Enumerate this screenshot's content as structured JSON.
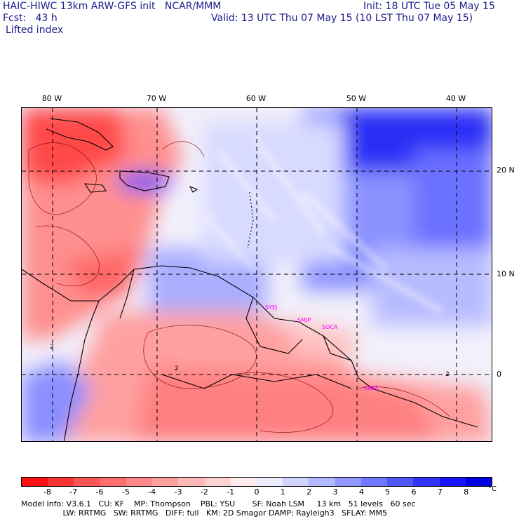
{
  "header": {
    "line1_left": "HAIC-HIWC 13km ARW-GFS init   NCAR/MMM",
    "line1_right": "Init: 18 UTC Tue 05 May 15",
    "line2_left": "Fcst:   43 h",
    "line2_right": "Valid: 13 UTC Thu 07 May 15 (10 LST Thu 07 May 15)",
    "field": "Lifted index"
  },
  "map": {
    "lon_labels": [
      "80 W",
      "70 W",
      "60 W",
      "50 W",
      "40 W"
    ],
    "lat_labels": [
      "20 N",
      "10 N",
      "0"
    ],
    "site_labels": [
      "SYEJ",
      "SMJP",
      "SOCA",
      "SBBE"
    ],
    "contour_label": "2"
  },
  "colorbar": {
    "ticks": [
      "-8",
      "-7",
      "-6",
      "-5",
      "-4",
      "-3",
      "-2",
      "-1",
      "0",
      "1",
      "2",
      "3",
      "4",
      "5",
      "6",
      "7",
      "8"
    ],
    "unit": "°C",
    "colors": [
      "#ff1010",
      "#ff3535",
      "#ff5555",
      "#ff6f6f",
      "#ff8888",
      "#ffa0a0",
      "#ffb8b8",
      "#ffd2d2",
      "#ffecec",
      "#ececff",
      "#d0d4ff",
      "#b2b8ff",
      "#9298ff",
      "#7278ff",
      "#5258ff",
      "#3035ff",
      "#1515ff",
      "#0000e0"
    ]
  },
  "footer": {
    "line1": "Model Info: V3.6.1   CU: KF    MP: Thompson    PBL: YSU       SF: Noah LSM     13 km   51 levels   60 sec",
    "line2": "                 LW: RRTMG   SW: RRTMG   DIFF: full   KM: 2D Smagor DAMP: Rayleigh3   SFLAY: MM5"
  }
}
